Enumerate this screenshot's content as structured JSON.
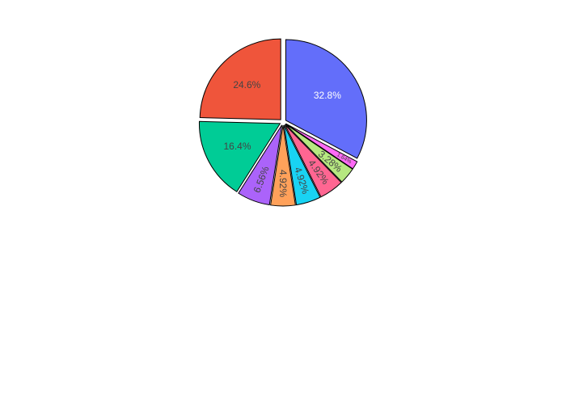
{
  "chart_data": {
    "type": "pie",
    "title": "",
    "direction": "clockwise",
    "start": "12 o'clock",
    "legend": "none",
    "labels_shown": "percent",
    "slices": [
      {
        "value": 32.8,
        "label": "32.8%",
        "color": "#636efa",
        "label_color": "#ffffff",
        "label_position": "inside-horizontal"
      },
      {
        "value": 1.64,
        "label": "1.64%",
        "color": "#ff6bf6",
        "label_color": "#444444",
        "label_position": "inside-radial-small"
      },
      {
        "value": 3.28,
        "label": "3.28%",
        "color": "#b6e880",
        "label_color": "#444444",
        "label_position": "inside-radial"
      },
      {
        "value": 4.92,
        "label": "4.92%",
        "color": "#ff6692",
        "label_color": "#444444",
        "label_position": "inside-radial"
      },
      {
        "value": 4.92,
        "label": "4.92%",
        "color": "#19d3f3",
        "label_color": "#444444",
        "label_position": "inside-radial"
      },
      {
        "value": 4.92,
        "label": "4.92%",
        "color": "#ffa15a",
        "label_color": "#444444",
        "label_position": "inside-radial"
      },
      {
        "value": 6.56,
        "label": "6.56%",
        "color": "#ab63fa",
        "label_color": "#444444",
        "label_position": "inside-radial"
      },
      {
        "value": 16.4,
        "label": "16.4%",
        "color": "#00cc96",
        "label_color": "#444444",
        "label_position": "inside-horizontal"
      },
      {
        "value": 24.6,
        "label": "24.6%",
        "color": "#ef553b",
        "label_color": "#444444",
        "label_position": "inside-horizontal"
      }
    ],
    "stroke_color": "#000000"
  }
}
